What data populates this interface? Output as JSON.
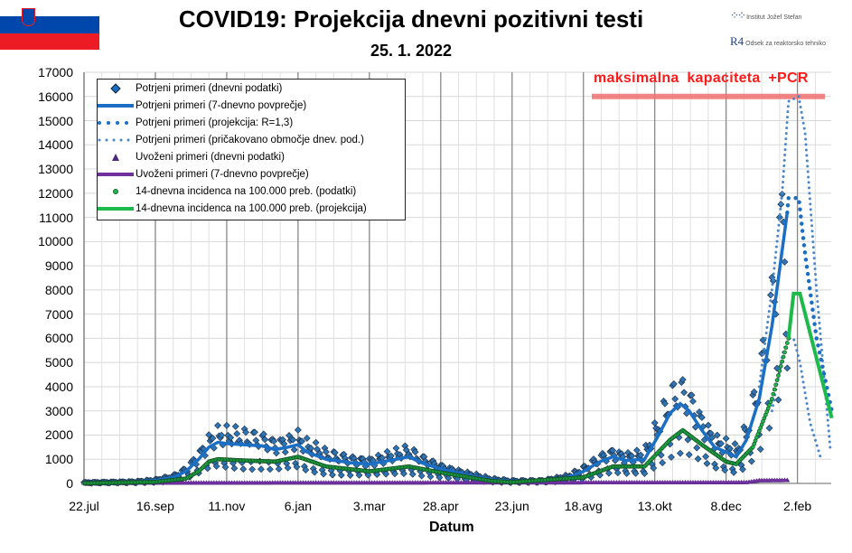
{
  "header": {
    "title": "COVID19: Projekcija dnevni pozitivni testi",
    "date": "25. 1. 2022"
  },
  "logo": {
    "institute": "Institut Jožef Stefan",
    "department": "Odsek za reaktorsko tehniko",
    "mark": "R4"
  },
  "colors": {
    "blue": "#1a6fc4",
    "purple": "#7030a0",
    "green": "#1db94a",
    "capacity": "#f07070",
    "capacity_text": "#ff1a1a"
  },
  "annotation": "maksimalna  kapaciteta  +PCR",
  "chart_data": {
    "type": "line",
    "title": "COVID19: Projekcija dnevni pozitivni testi",
    "xlabel": "Datum",
    "ylabel": "",
    "x_unit": "days since 22.jul 2020",
    "xlim": [
      0,
      586
    ],
    "ylim": [
      0,
      17000
    ],
    "x_ticks": [
      {
        "day": 0,
        "label": "22.jul"
      },
      {
        "day": 56,
        "label": "16.sep"
      },
      {
        "day": 112,
        "label": "11.nov"
      },
      {
        "day": 168,
        "label": "6.jan"
      },
      {
        "day": 224,
        "label": "3.mar"
      },
      {
        "day": 280,
        "label": "28.apr"
      },
      {
        "day": 336,
        "label": "23.jun"
      },
      {
        "day": 392,
        "label": "18.avg"
      },
      {
        "day": 448,
        "label": "13.okt"
      },
      {
        "day": 504,
        "label": "8.dec"
      },
      {
        "day": 560,
        "label": "2.feb"
      }
    ],
    "y_ticks": [
      0,
      1000,
      2000,
      3000,
      4000,
      5000,
      6000,
      7000,
      8000,
      9000,
      10000,
      11000,
      12000,
      13000,
      14000,
      15000,
      16000,
      17000
    ],
    "capacity_line": 16000,
    "legend_placement": "top-left",
    "series": [
      {
        "name": "Potrjeni primeri (dnevni podatki)",
        "kind": "daily-scatter-diamond"
      },
      {
        "name": "Potrjeni primeri (7-dnevno povprečje)",
        "kind": "solid",
        "points": [
          [
            0,
            30
          ],
          [
            40,
            60
          ],
          [
            56,
            120
          ],
          [
            70,
            250
          ],
          [
            80,
            500
          ],
          [
            90,
            1000
          ],
          [
            98,
            1500
          ],
          [
            105,
            1700
          ],
          [
            112,
            1650
          ],
          [
            125,
            1600
          ],
          [
            140,
            1550
          ],
          [
            150,
            1400
          ],
          [
            160,
            1500
          ],
          [
            168,
            1600
          ],
          [
            175,
            1300
          ],
          [
            190,
            1000
          ],
          [
            210,
            850
          ],
          [
            224,
            800
          ],
          [
            240,
            950
          ],
          [
            255,
            1100
          ],
          [
            265,
            850
          ],
          [
            280,
            600
          ],
          [
            300,
            350
          ],
          [
            320,
            150
          ],
          [
            336,
            90
          ],
          [
            360,
            100
          ],
          [
            380,
            250
          ],
          [
            392,
            500
          ],
          [
            405,
            900
          ],
          [
            415,
            1100
          ],
          [
            425,
            950
          ],
          [
            440,
            1000
          ],
          [
            450,
            1900
          ],
          [
            460,
            2900
          ],
          [
            468,
            3300
          ],
          [
            475,
            3000
          ],
          [
            485,
            2200
          ],
          [
            495,
            1500
          ],
          [
            504,
            1300
          ],
          [
            512,
            1100
          ],
          [
            520,
            1800
          ],
          [
            530,
            3500
          ],
          [
            540,
            6500
          ],
          [
            552,
            11200
          ]
        ]
      },
      {
        "name": "Potrjeni primeri (projekcija: R=1,3)",
        "kind": "dots",
        "points": [
          [
            552,
            11200
          ],
          [
            553,
            11800
          ],
          [
            561,
            11800
          ],
          [
            566,
            9500
          ],
          [
            575,
            6000
          ],
          [
            587,
            3000
          ]
        ]
      },
      {
        "name": "Potrjeni primeri (pričakovano območje dnev. pod.)",
        "kind": "small-dots",
        "points": [
          [
            530,
            4000
          ],
          [
            540,
            8000
          ],
          [
            548,
            12000
          ],
          [
            553,
            15800
          ],
          [
            561,
            16000
          ],
          [
            566,
            14500
          ],
          [
            575,
            8000
          ],
          [
            586,
            1300
          ]
        ],
        "lower": [
          [
            540,
            3000
          ],
          [
            549,
            5500
          ],
          [
            553,
            6000
          ],
          [
            557,
            6000
          ],
          [
            562,
            5000
          ],
          [
            570,
            2500
          ],
          [
            578,
            1100
          ]
        ]
      },
      {
        "name": "Uvoženi primeri (dnevni podatki)",
        "kind": "daily-scatter-triangle"
      },
      {
        "name": "Uvoženi primeri (7-dnevno povprečje)",
        "kind": "solid",
        "points": [
          [
            0,
            20
          ],
          [
            520,
            40
          ],
          [
            530,
            120
          ],
          [
            552,
            130
          ]
        ]
      },
      {
        "name": "14-dnevna incidenca na 100.000 preb. (podatki)",
        "kind": "circles",
        "points": [
          [
            0,
            10
          ],
          [
            56,
            60
          ],
          [
            80,
            200
          ],
          [
            90,
            500
          ],
          [
            98,
            900
          ],
          [
            105,
            1000
          ],
          [
            125,
            950
          ],
          [
            150,
            900
          ],
          [
            168,
            1100
          ],
          [
            190,
            700
          ],
          [
            224,
            500
          ],
          [
            255,
            700
          ],
          [
            280,
            450
          ],
          [
            320,
            100
          ],
          [
            336,
            50
          ],
          [
            392,
            250
          ],
          [
            415,
            700
          ],
          [
            440,
            700
          ],
          [
            460,
            1800
          ],
          [
            470,
            2200
          ],
          [
            485,
            1600
          ],
          [
            504,
            900
          ],
          [
            512,
            800
          ],
          [
            525,
            1500
          ],
          [
            540,
            3500
          ],
          [
            553,
            6000
          ]
        ]
      },
      {
        "name": "14-dnevna incidenca na 100.000 preb. (projekcija)",
        "kind": "solid",
        "points": [
          [
            553,
            6000
          ],
          [
            557,
            7850
          ],
          [
            562,
            7850
          ],
          [
            587,
            2700
          ]
        ]
      }
    ]
  }
}
